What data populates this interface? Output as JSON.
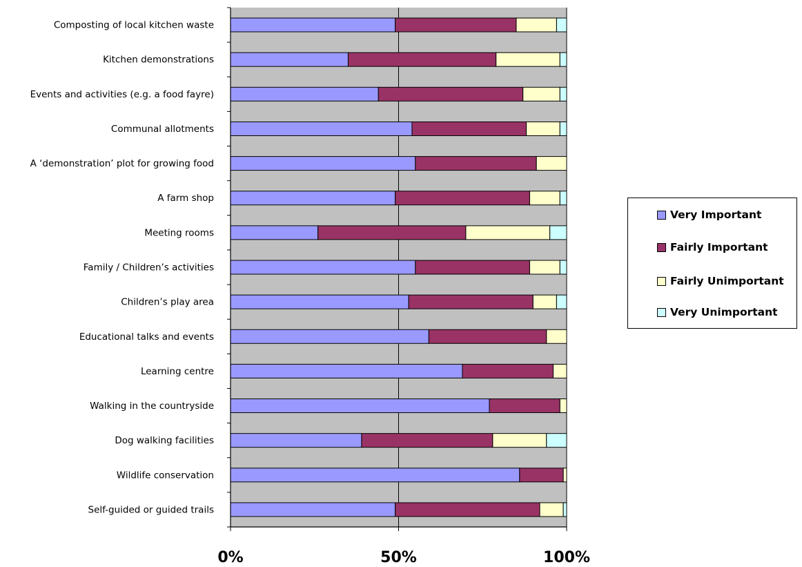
{
  "chart_data": {
    "type": "bar",
    "orientation": "horizontal",
    "stacked": "percent",
    "categories": [
      "Composting of local kitchen waste",
      "Kitchen demonstrations",
      "Events and activities (e.g. a food fayre)",
      "Communal allotments",
      "A ‘demonstration’ plot for growing food",
      "A farm shop",
      "Meeting rooms",
      "Family / Children’s activities",
      "Children’s play area",
      "Educational talks and events",
      "Learning centre",
      "Walking in the countryside",
      "Dog walking facilities",
      "Wildlife conservation",
      "Self-guided or guided trails"
    ],
    "series": [
      {
        "name": "Very Important",
        "color": "#9999ff",
        "values": [
          49,
          35,
          44,
          54,
          55,
          49,
          26,
          55,
          53,
          59,
          69,
          77,
          39,
          86,
          49
        ]
      },
      {
        "name": "Fairly Important",
        "color": "#993366",
        "values": [
          36,
          44,
          43,
          34,
          36,
          40,
          44,
          34,
          37,
          35,
          27,
          21,
          39,
          13,
          43
        ]
      },
      {
        "name": "Fairly Unimportant",
        "color": "#ffffcc",
        "values": [
          12,
          19,
          11,
          10,
          9,
          9,
          25,
          9,
          7,
          6,
          4,
          2,
          16,
          1,
          7
        ]
      },
      {
        "name": "Very Unimportant",
        "color": "#ccffff",
        "values": [
          3,
          2,
          2,
          2,
          0,
          2,
          5,
          2,
          3,
          0,
          0,
          0,
          6,
          0,
          1
        ]
      }
    ],
    "xlim": [
      0,
      100
    ],
    "xticks": [
      "0%",
      "50%",
      "100%"
    ],
    "xlabel": "",
    "ylabel": "",
    "title": "",
    "grid": true,
    "plot_background": "#c0c0c0",
    "legend_position": "right"
  }
}
